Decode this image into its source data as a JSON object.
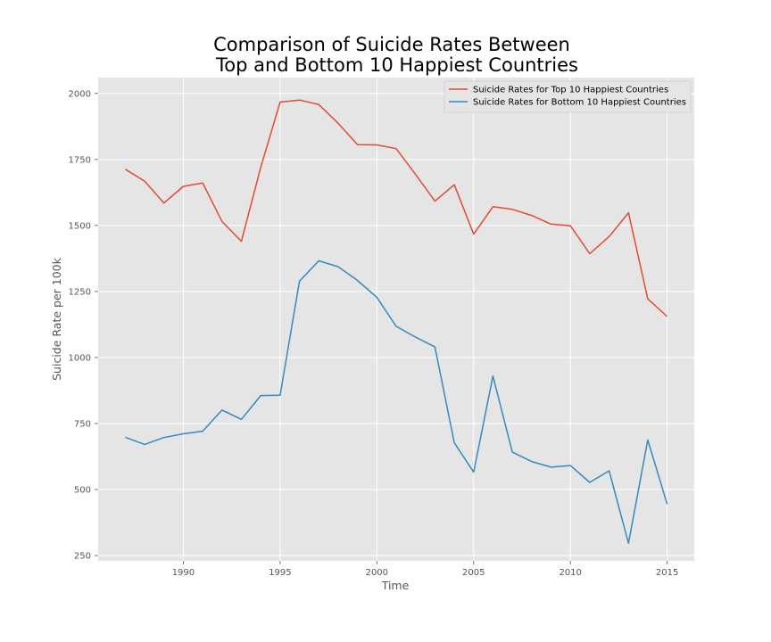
{
  "chart_data": {
    "type": "line",
    "title": [
      "Comparison of Suicide Rates Between",
      "Top and Bottom 10 Happiest Countries"
    ],
    "xlabel": "Time",
    "ylabel": "Suicide Rate per 100k",
    "xlim": [
      1985.6,
      2016.4
    ],
    "ylim": [
      230,
      2060
    ],
    "xticks": [
      1990,
      1995,
      2000,
      2005,
      2010,
      2015
    ],
    "yticks": [
      250,
      500,
      750,
      1000,
      1250,
      1500,
      1750,
      2000
    ],
    "grid": true,
    "legend": "top-right",
    "x": [
      1987,
      1988,
      1989,
      1990,
      1991,
      1992,
      1993,
      1994,
      1995,
      1996,
      1997,
      1998,
      1999,
      2000,
      2001,
      2002,
      2003,
      2004,
      2005,
      2006,
      2007,
      2008,
      2009,
      2010,
      2011,
      2012,
      2013,
      2014,
      2015
    ],
    "series": [
      {
        "name": "Suicide Rates for Top 10 Happiest Countries",
        "color": "#e24a33",
        "values": [
          1713,
          1668,
          1585,
          1648,
          1661,
          1515,
          1440,
          1720,
          1967,
          1975,
          1958,
          1887,
          1806,
          1805,
          1791,
          1693,
          1592,
          1654,
          1467,
          1571,
          1561,
          1538,
          1505,
          1499,
          1393,
          1458,
          1548,
          1222,
          1155
        ]
      },
      {
        "name": "Suicide Rates for Bottom 10 Happiest Countries",
        "color": "#348abd",
        "values": [
          698,
          671,
          697,
          711,
          721,
          801,
          766,
          856,
          857,
          1289,
          1366,
          1344,
          1292,
          1228,
          1118,
          1077,
          1040,
          677,
          566,
          930,
          642,
          606,
          585,
          591,
          527,
          571,
          297,
          688,
          445
        ]
      }
    ]
  }
}
